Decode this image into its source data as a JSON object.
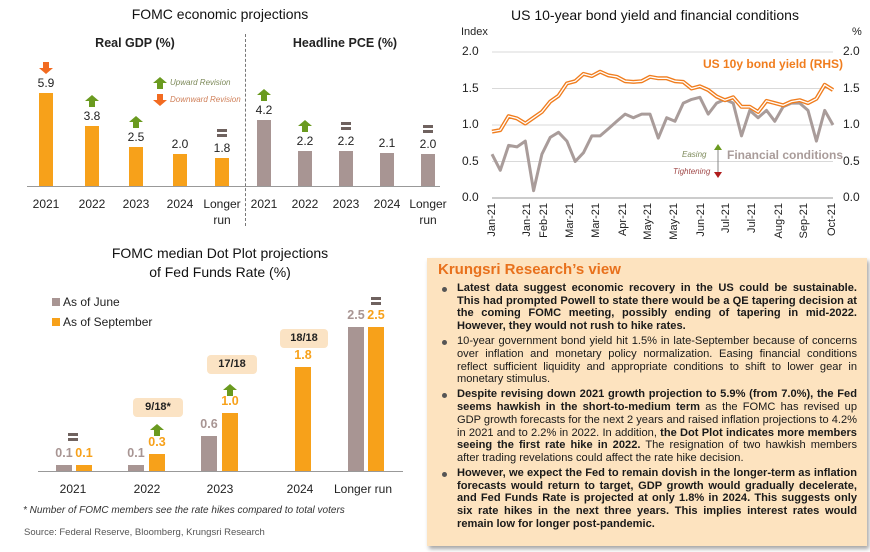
{
  "chart_data": [
    {
      "type": "bar",
      "title": "FOMC economic projections",
      "panels": [
        {
          "subtitle": "Real GDP (%)",
          "categories": [
            "2021",
            "2022",
            "2023",
            "2024",
            "Longer run"
          ],
          "values": [
            5.9,
            3.8,
            2.5,
            2.0,
            1.8
          ],
          "value_labels": [
            "5.9",
            "3.8",
            "2.5",
            "2.0",
            "1.8"
          ],
          "revisions": [
            "down",
            "up",
            "up",
            null,
            "same"
          ],
          "color": "#f7a11a"
        },
        {
          "subtitle": "Headline PCE (%)",
          "categories": [
            "2021",
            "2022",
            "2023",
            "2024",
            "Longer run"
          ],
          "values": [
            4.2,
            2.2,
            2.2,
            2.1,
            2.0
          ],
          "value_labels": [
            "4.2",
            "2.2",
            "2.2",
            "2.1",
            "2.0"
          ],
          "revisions": [
            "up",
            "up",
            "same",
            null,
            "same"
          ],
          "color": "#a89593"
        }
      ],
      "legend": {
        "up": "Upward Revision",
        "down": "Downward Revision",
        "up_color": "#6a9a1f",
        "down_color": "#f26b21"
      }
    },
    {
      "type": "line",
      "title": "US 10-year bond yield and financial conditions",
      "ylabel_left": "Index",
      "ylabel_right": "%",
      "ylim": [
        0,
        2
      ],
      "yticks": [
        "0.0",
        "0.5",
        "1.0",
        "1.5",
        "2.0"
      ],
      "grid": true,
      "x_tick_labels": [
        "Jan-21",
        "Jan-21",
        "Feb-21",
        "Mar-21",
        "Mar-21",
        "Apr-21",
        "May-21",
        "May-21",
        "Jun-21",
        "Jul-21",
        "Jul-21",
        "Aug-21",
        "Sep-21",
        "Oct-21"
      ],
      "series": [
        {
          "name": "US 10y bond yield (RHS)",
          "axis": "right",
          "color": "#f07d1e",
          "values": [
            0.91,
            0.93,
            1.12,
            1.09,
            1.02,
            1.1,
            1.18,
            1.32,
            1.4,
            1.57,
            1.6,
            1.7,
            1.67,
            1.73,
            1.68,
            1.66,
            1.6,
            1.59,
            1.6,
            1.66,
            1.64,
            1.64,
            1.6,
            1.59,
            1.5,
            1.53,
            1.48,
            1.39,
            1.34,
            1.38,
            1.25,
            1.25,
            1.18,
            1.33,
            1.3,
            1.27,
            1.32,
            1.34,
            1.3,
            1.36,
            1.55,
            1.48
          ]
        },
        {
          "name": "Financial conditions",
          "axis": "left",
          "color": "#a99c9a",
          "values": [
            0.6,
            0.38,
            0.72,
            0.7,
            0.78,
            0.1,
            0.6,
            0.83,
            0.9,
            0.78,
            0.5,
            0.62,
            0.85,
            0.85,
            0.95,
            1.05,
            1.15,
            1.1,
            1.15,
            1.15,
            0.82,
            1.1,
            1.05,
            1.3,
            1.35,
            1.38,
            1.15,
            1.3,
            1.35,
            1.3,
            0.85,
            1.2,
            1.1,
            1.2,
            1.05,
            1.25,
            1.3,
            1.3,
            1.2,
            0.78,
            1.2,
            1.0
          ]
        }
      ],
      "annotations": {
        "easing": "Easing",
        "tightening": "Tightening",
        "easing_color": "#6a9a1f",
        "tightening_color": "#b01c1c"
      }
    },
    {
      "type": "bar",
      "title_lines": [
        "FOMC median Dot Plot projections",
        "of Fed Funds Rate (%)"
      ],
      "categories": [
        "2021",
        "2022",
        "2023",
        "2024",
        "Longer run"
      ],
      "series": [
        {
          "name": "As of June",
          "color": "#a89593",
          "values": [
            0.1,
            0.1,
            0.6,
            null,
            2.5
          ],
          "value_labels": [
            "0.1",
            "0.1",
            "0.6",
            null,
            "2.5"
          ]
        },
        {
          "name": "As of September",
          "color": "#f7a11a",
          "values": [
            0.1,
            0.3,
            1.0,
            1.8,
            2.5
          ],
          "value_labels": [
            "0.1",
            "0.3",
            "1.0",
            "1.8",
            "2.5"
          ]
        }
      ],
      "revisions": [
        "same",
        "up",
        "up",
        null,
        "same"
      ],
      "vote_boxes": [
        null,
        "9/18*",
        "17/18",
        "18/18",
        null
      ],
      "legend": "top-left"
    }
  ],
  "footnote": "* Number of FOMC members see the rate hikes compared to total voters",
  "source": "Source: Federal Reserve, Bloomberg, Krungsri Research",
  "view": {
    "title": "Krungsri Research’s view",
    "bullets": [
      [
        {
          "text": "Latest data suggest economic recovery in the US could be sustainable. This had prompted Powell to state there would be a QE tapering decision at the coming FOMC meeting, possibly ending of tapering in mid-2022. However, they would not rush to hike rates.",
          "bold": true
        }
      ],
      [
        {
          "text": "10-year government bond yield hit 1.5% in late-September because of concerns over inflation and monetary policy normalization. Easing financial conditions reflect sufficient liquidity and appropriate conditions to shift to lower gear in monetary stimulus.",
          "bold": false
        }
      ],
      [
        {
          "text": "Despite revising down 2021 growth projection to 5.9% (from 7.0%), the Fed seems hawkish in the short-to-medium term",
          "bold": true
        },
        {
          "text": " as the FOMC has revised up GDP growth forecasts for the next 2 years and raised inflation projections to 4.2% in 2021 and to 2.2% in 2022. In addition, ",
          "bold": false
        },
        {
          "text": "the Dot Plot indicates more members seeing the first rate hike in 2022.",
          "bold": true
        },
        {
          "text": " The resignation of two hawkish members after trading revelations could affect the rate hike decision.",
          "bold": false
        }
      ],
      [
        {
          "text": "However, we expect the Fed  to remain dovish in the longer-term as inflation forecasts would return to target, GDP growth would gradually decelerate, and Fed Funds Rate is projected at only 1.8% in 2024. This suggests only six rate hikes in the next three years. This implies interest rates would remain low for longer post-pandemic.",
          "bold": true
        }
      ]
    ]
  }
}
